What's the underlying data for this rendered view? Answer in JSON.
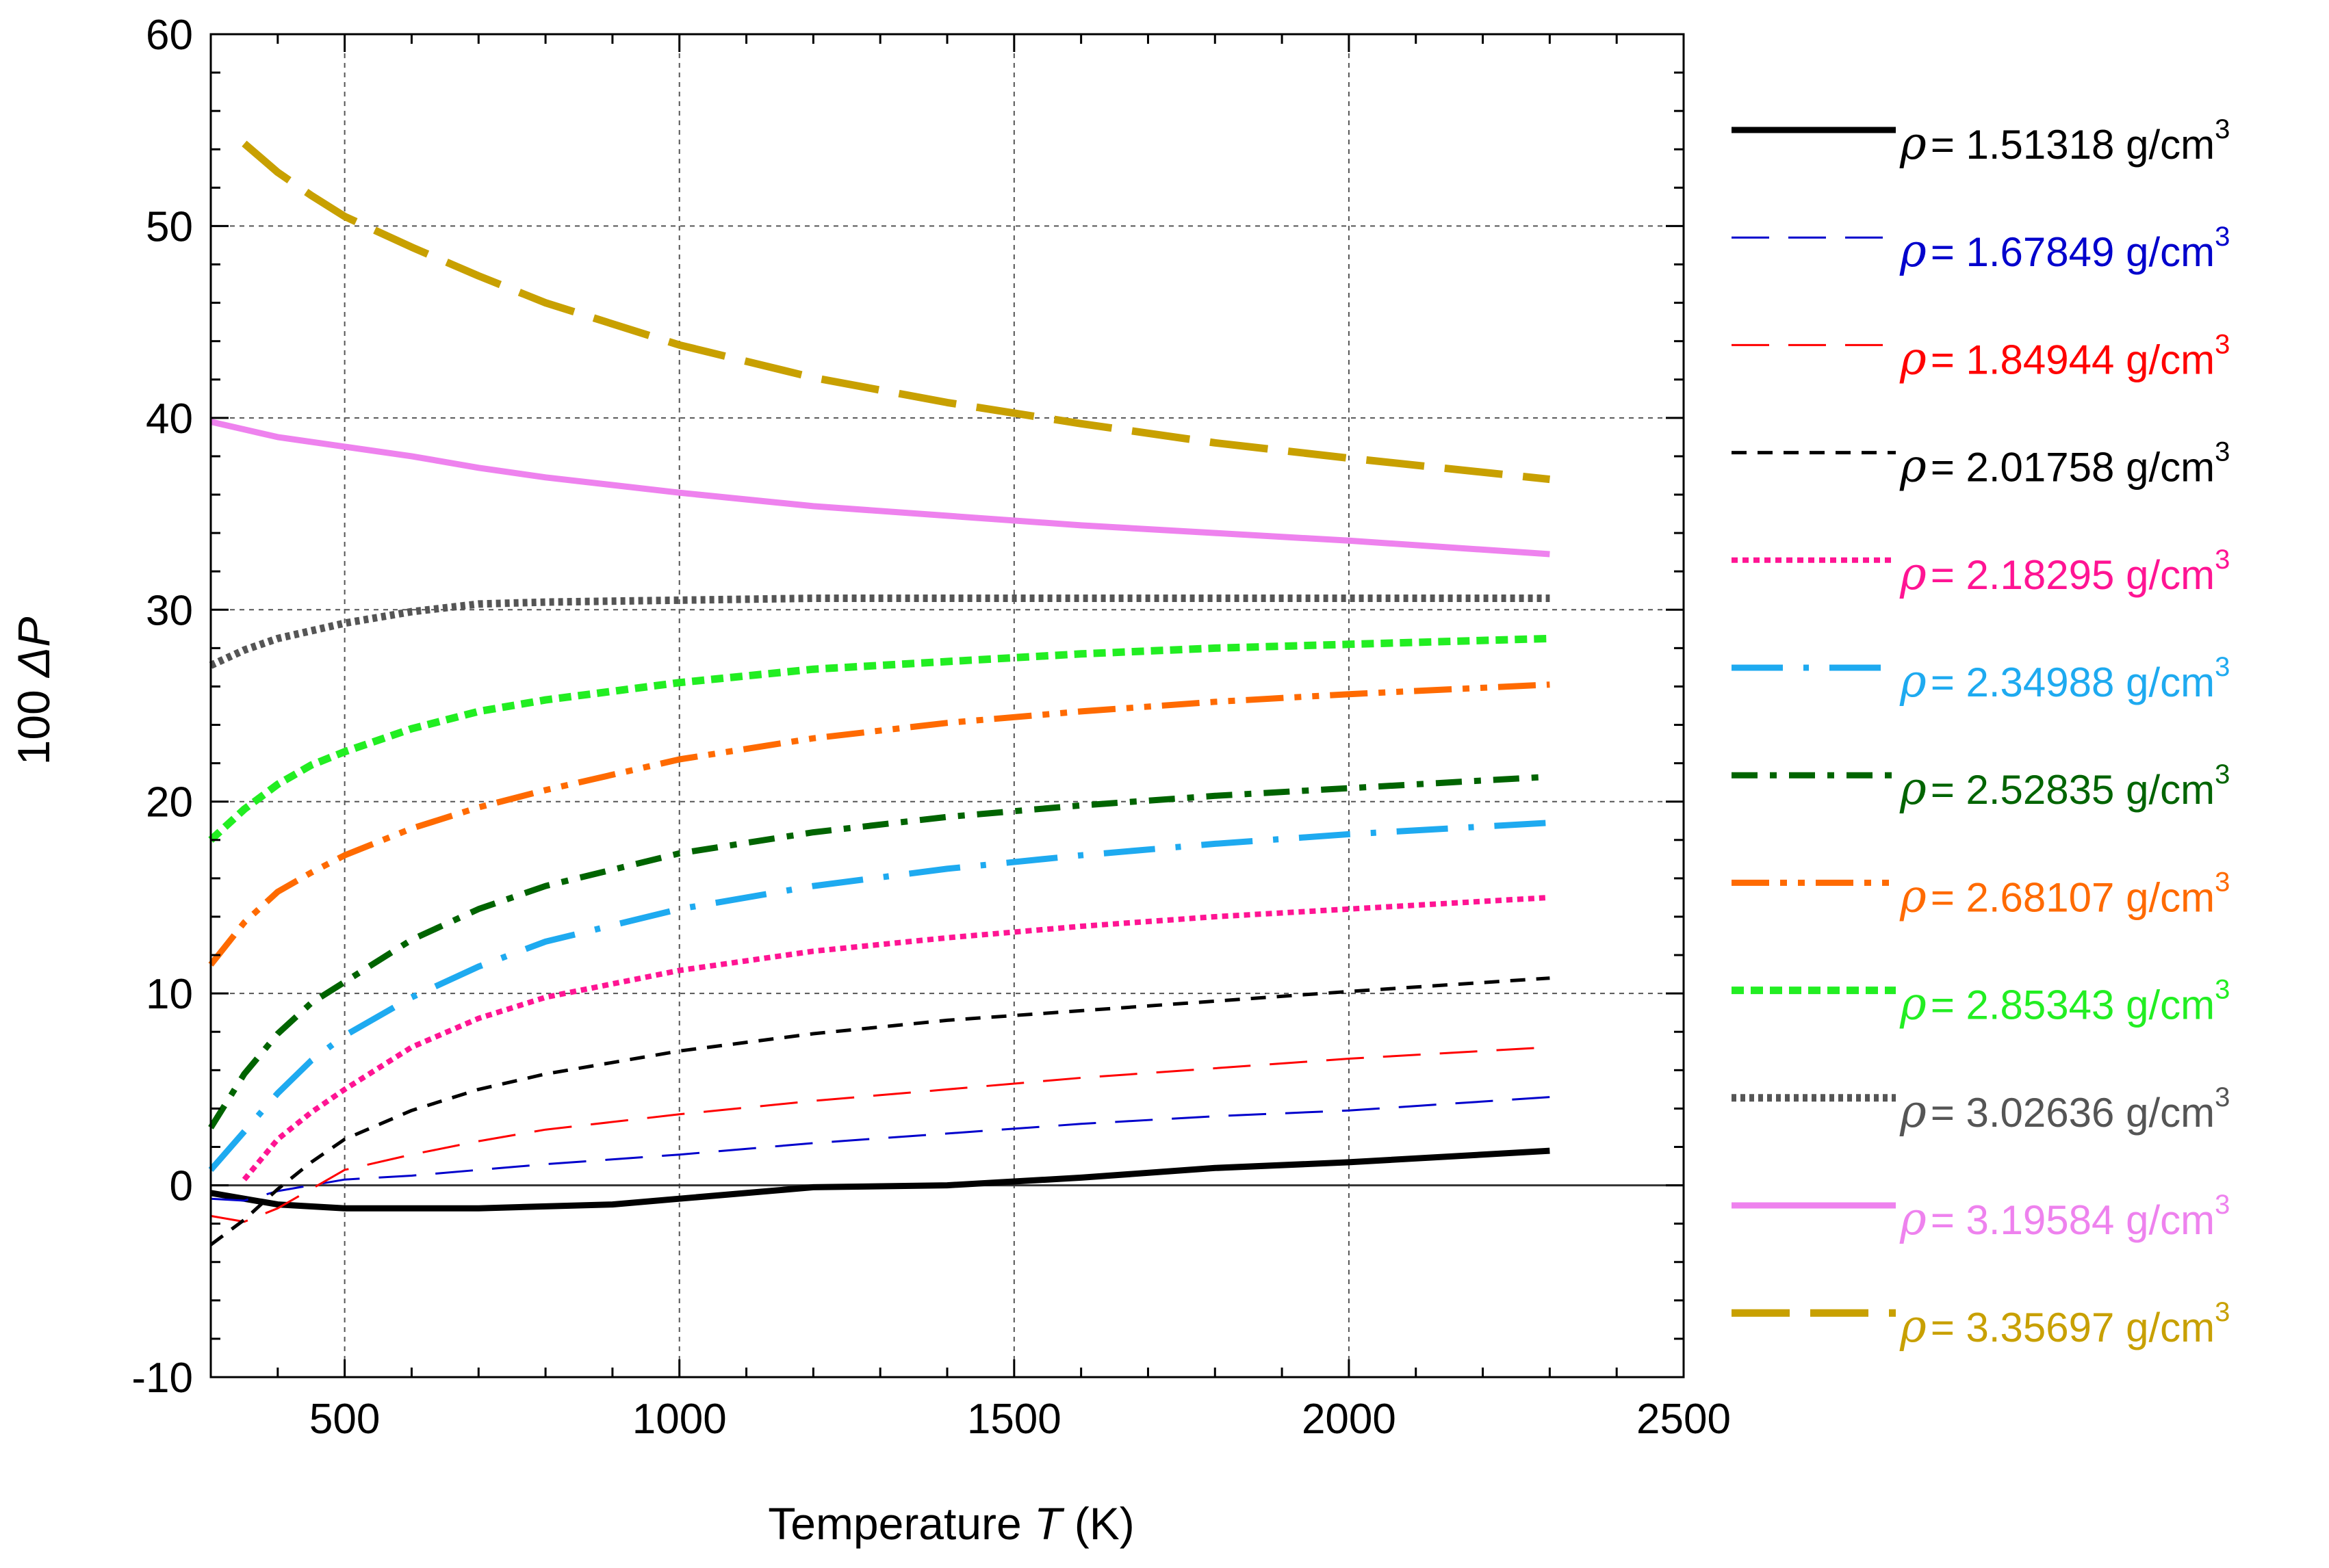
{
  "chart_data": {
    "type": "line",
    "title": "",
    "xlabel": {
      "prefix": "Temperature ",
      "var": "T",
      "suffix": " (K)"
    },
    "ylabel": {
      "prefix": "100 ",
      "var": "ΔP"
    },
    "xlim": [
      300,
      2500
    ],
    "ylim": [
      -10,
      60
    ],
    "xticks": [
      500,
      1000,
      1500,
      2000,
      2500
    ],
    "yticks": [
      -10,
      0,
      10,
      20,
      30,
      40,
      50,
      60
    ],
    "xtick_labels": [
      "500",
      "1000",
      "1500",
      "2000",
      "2500"
    ],
    "ytick_labels": [
      "-10",
      "0",
      "10",
      "20",
      "30",
      "40",
      "50",
      "60"
    ],
    "grid": true,
    "legend_position": "right",
    "legend_symbol": "ρ",
    "legend_unit": "g/cm",
    "legend_unit_sup": "3",
    "series": [
      {
        "name": "= 1.51318 g/cm",
        "density": "1.51318",
        "color": "#000000",
        "style": "solid-thick",
        "x": [
          300,
          400,
          500,
          600,
          700,
          800,
          900,
          1000,
          1200,
          1400,
          1600,
          1800,
          2000,
          2300
        ],
        "y": [
          -0.4,
          -1.0,
          -1.2,
          -1.2,
          -1.2,
          -1.1,
          -1.0,
          -0.7,
          -0.1,
          0.0,
          0.4,
          0.9,
          1.2,
          1.8
        ]
      },
      {
        "name": "= 1.67849 g/cm",
        "density": "1.67849",
        "color": "#0000cc",
        "style": "long-dash-thin",
        "x": [
          300,
          350,
          400,
          500,
          600,
          700,
          800,
          1000,
          1200,
          1400,
          1600,
          1800,
          2000,
          2300
        ],
        "y": [
          -0.7,
          -0.8,
          -0.3,
          0.3,
          0.5,
          0.8,
          1.1,
          1.6,
          2.2,
          2.7,
          3.2,
          3.6,
          3.9,
          4.6
        ]
      },
      {
        "name": "= 1.84944 g/cm",
        "density": "1.84944",
        "color": "#ff0000",
        "style": "long-dash-thin",
        "x": [
          300,
          350,
          400,
          500,
          600,
          700,
          800,
          1000,
          1200,
          1400,
          1600,
          1800,
          2000,
          2300
        ],
        "y": [
          -1.6,
          -1.9,
          -1.2,
          0.8,
          1.6,
          2.3,
          2.9,
          3.7,
          4.4,
          5.0,
          5.6,
          6.1,
          6.6,
          7.2
        ]
      },
      {
        "name": "= 2.01758 g/cm",
        "density": "2.01758",
        "color": "#000000",
        "style": "dash",
        "x": [
          300,
          350,
          400,
          450,
          500,
          600,
          700,
          800,
          1000,
          1200,
          1400,
          1600,
          1800,
          2000,
          2300
        ],
        "y": [
          -3.1,
          -1.8,
          -0.2,
          1.2,
          2.4,
          3.9,
          5.0,
          5.8,
          7.0,
          7.9,
          8.6,
          9.1,
          9.6,
          10.1,
          10.8
        ]
      },
      {
        "name": "= 2.18295 g/cm",
        "density": "2.18295",
        "color": "#ff1493",
        "style": "dot",
        "x": [
          350,
          400,
          450,
          500,
          600,
          700,
          800,
          1000,
          1200,
          1400,
          1600,
          1800,
          2000,
          2300
        ],
        "y": [
          0.3,
          2.4,
          3.8,
          5.0,
          7.2,
          8.7,
          9.8,
          11.2,
          12.2,
          12.9,
          13.5,
          14.0,
          14.4,
          15.0
        ]
      },
      {
        "name": "= 2.34988 g/cm",
        "density": "2.34988",
        "color": "#1eaaf0",
        "style": "dash-dot-long",
        "x": [
          300,
          350,
          400,
          450,
          500,
          600,
          700,
          800,
          1000,
          1200,
          1400,
          1600,
          1800,
          2000,
          2300
        ],
        "y": [
          0.8,
          2.8,
          4.8,
          6.5,
          7.8,
          9.8,
          11.4,
          12.7,
          14.4,
          15.6,
          16.5,
          17.2,
          17.8,
          18.3,
          18.9
        ]
      },
      {
        "name": "= 2.52835 g/cm",
        "density": "2.52835",
        "color": "#006400",
        "style": "dash-dot",
        "x": [
          300,
          350,
          400,
          450,
          500,
          600,
          700,
          800,
          1000,
          1200,
          1400,
          1600,
          1800,
          2000,
          2300
        ],
        "y": [
          3.0,
          5.8,
          7.9,
          9.5,
          10.6,
          12.8,
          14.4,
          15.6,
          17.3,
          18.4,
          19.2,
          19.8,
          20.3,
          20.7,
          21.3
        ]
      },
      {
        "name": "= 2.68107 g/cm",
        "density": "2.68107",
        "color": "#ff6a00",
        "style": "dash-dot-dot",
        "x": [
          300,
          350,
          400,
          450,
          500,
          600,
          700,
          800,
          1000,
          1200,
          1400,
          1600,
          1800,
          2000,
          2300
        ],
        "y": [
          11.5,
          13.7,
          15.3,
          16.3,
          17.2,
          18.6,
          19.7,
          20.6,
          22.2,
          23.3,
          24.1,
          24.7,
          25.2,
          25.6,
          26.1
        ]
      },
      {
        "name": "= 2.85343 g/cm",
        "density": "2.85343",
        "color": "#22ee22",
        "style": "short-dash",
        "x": [
          300,
          350,
          400,
          450,
          500,
          600,
          700,
          800,
          1000,
          1200,
          1400,
          1600,
          1800,
          2000,
          2300
        ],
        "y": [
          18.0,
          19.6,
          20.9,
          21.9,
          22.6,
          23.8,
          24.7,
          25.3,
          26.2,
          26.9,
          27.3,
          27.7,
          28.0,
          28.2,
          28.5
        ]
      },
      {
        "name": "= 3.02636 g/cm",
        "density": "3.02636",
        "color": "#555555",
        "style": "dot-heavy",
        "x": [
          300,
          350,
          400,
          450,
          500,
          600,
          700,
          800,
          1000,
          1200,
          1400,
          1600,
          1800,
          2000,
          2300
        ],
        "y": [
          27.1,
          27.9,
          28.5,
          28.9,
          29.3,
          29.9,
          30.3,
          30.4,
          30.5,
          30.6,
          30.6,
          30.6,
          30.6,
          30.6,
          30.6
        ]
      },
      {
        "name": "= 3.19584 g/cm",
        "density": "3.19584",
        "color": "#ee82ee",
        "style": "solid-thick",
        "x": [
          300,
          400,
          500,
          600,
          700,
          800,
          1000,
          1200,
          1400,
          1600,
          1800,
          2000,
          2300
        ],
        "y": [
          39.8,
          39.0,
          38.5,
          38.0,
          37.4,
          36.9,
          36.1,
          35.4,
          34.9,
          34.4,
          34.0,
          33.6,
          32.9
        ]
      },
      {
        "name": "= 3.35697 g/cm",
        "density": "3.35697",
        "color": "#c8a000",
        "style": "long-dash-thick",
        "x": [
          350,
          400,
          450,
          500,
          600,
          700,
          800,
          1000,
          1200,
          1400,
          1600,
          1800,
          2000,
          2300
        ],
        "y": [
          54.3,
          52.8,
          51.6,
          50.5,
          48.9,
          47.4,
          46.0,
          43.8,
          42.1,
          40.8,
          39.7,
          38.7,
          37.9,
          36.8
        ]
      }
    ]
  }
}
